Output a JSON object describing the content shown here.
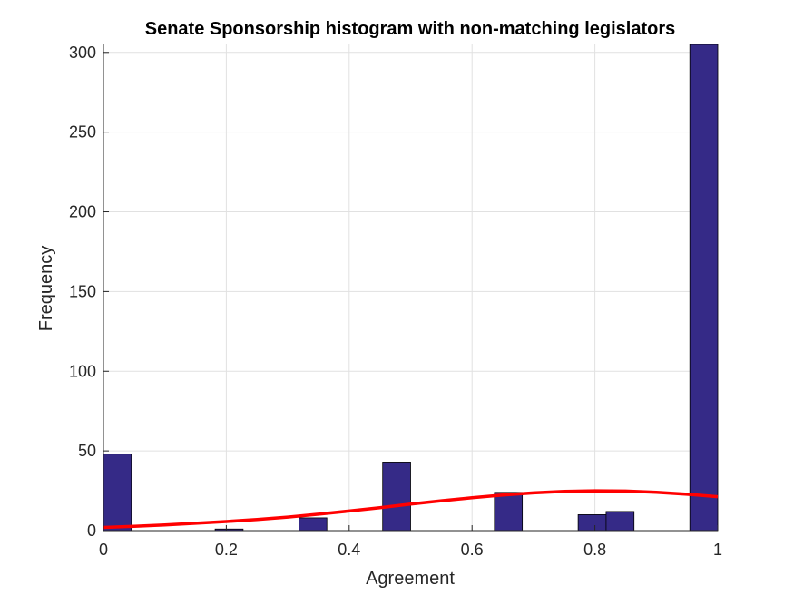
{
  "chart_data": {
    "type": "bar",
    "title": "Senate Sponsorship histogram with non-matching legislators",
    "xlabel": "Agreement",
    "ylabel": "Frequency",
    "xlim": [
      0,
      1
    ],
    "ylim": [
      0,
      305
    ],
    "grid": true,
    "xticks": [
      0,
      0.2,
      0.4,
      0.6,
      0.8,
      1
    ],
    "xtick_labels": [
      "0",
      "0.2",
      "0.4",
      "0.6",
      "0.8",
      "1"
    ],
    "yticks": [
      0,
      50,
      100,
      150,
      200,
      250,
      300
    ],
    "ytick_labels": [
      "0",
      "50",
      "100",
      "150",
      "200",
      "250",
      "300"
    ],
    "bin_width": 0.0455,
    "bins": [
      {
        "x_start": 0.0,
        "value": 48
      },
      {
        "x_start": 0.1818,
        "value": 1
      },
      {
        "x_start": 0.3182,
        "value": 8
      },
      {
        "x_start": 0.4545,
        "value": 43
      },
      {
        "x_start": 0.6364,
        "value": 24
      },
      {
        "x_start": 0.7727,
        "value": 10
      },
      {
        "x_start": 0.8182,
        "value": 12
      },
      {
        "x_start": 0.9545,
        "value": 305
      }
    ],
    "fit_curve": {
      "x": [
        0,
        0.05,
        0.1,
        0.15,
        0.2,
        0.25,
        0.3,
        0.35,
        0.4,
        0.45,
        0.5,
        0.55,
        0.6,
        0.65,
        0.7,
        0.75,
        0.8,
        0.85,
        0.9,
        0.95,
        1.0
      ],
      "y": [
        2,
        2.7,
        3.6,
        4.6,
        5.7,
        7.0,
        8.5,
        10.3,
        12.3,
        14.4,
        16.6,
        18.7,
        20.6,
        22.3,
        23.7,
        24.6,
        25.0,
        24.8,
        24.0,
        22.8,
        21.3
      ]
    },
    "colors": {
      "bar_fill": "#352a87",
      "bar_edge": "#000000",
      "fit_line": "#ff0000",
      "grid": "#e1e1e1",
      "axis": "#262626"
    }
  }
}
